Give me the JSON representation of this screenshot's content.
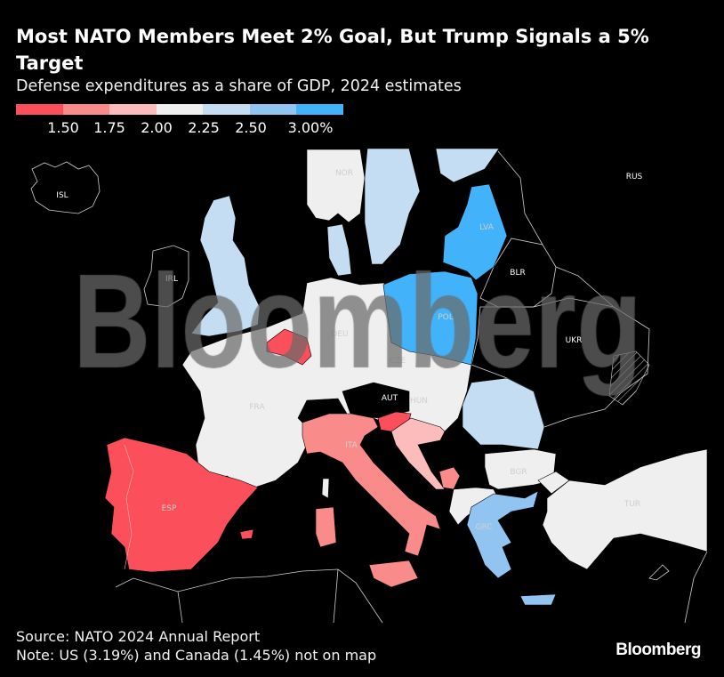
{
  "header": {
    "title": "Most NATO Members Meet 2% Goal, But Trump Signals a 5% Target",
    "subtitle": "Defense expenditures as a share of GDP, 2024 estimates"
  },
  "legend": {
    "colors": [
      "#fb4f5b",
      "#fa8b8b",
      "#fdbcbc",
      "#efefef",
      "#c5ddf2",
      "#92c4f2",
      "#42b3fa"
    ],
    "labels": [
      "1.50",
      "1.75",
      "2.00",
      "2.25",
      "2.50",
      "3.00%"
    ]
  },
  "map": {
    "no_data_color": "#000000",
    "labels": {
      "isl": "ISL",
      "nor": "NOR",
      "rus": "RUS",
      "lva": "LVA",
      "irl": "IRL",
      "blr": "BLR",
      "pol": "POL",
      "deu": "DEU",
      "ukr": "UKR",
      "cze": "CZE",
      "aut": "AUT",
      "hun": "HUN",
      "fra": "FRA",
      "ita": "ITA",
      "esp": "ESP",
      "bgr": "BGR",
      "tur": "TUR",
      "grc": "GRC"
    }
  },
  "watermark": "Bloomberg",
  "footer": {
    "source": "Source: NATO 2024 Annual Report",
    "note": "Note: US (3.19%) and Canada (1.45%) not on map"
  },
  "logo": "Bloomberg"
}
